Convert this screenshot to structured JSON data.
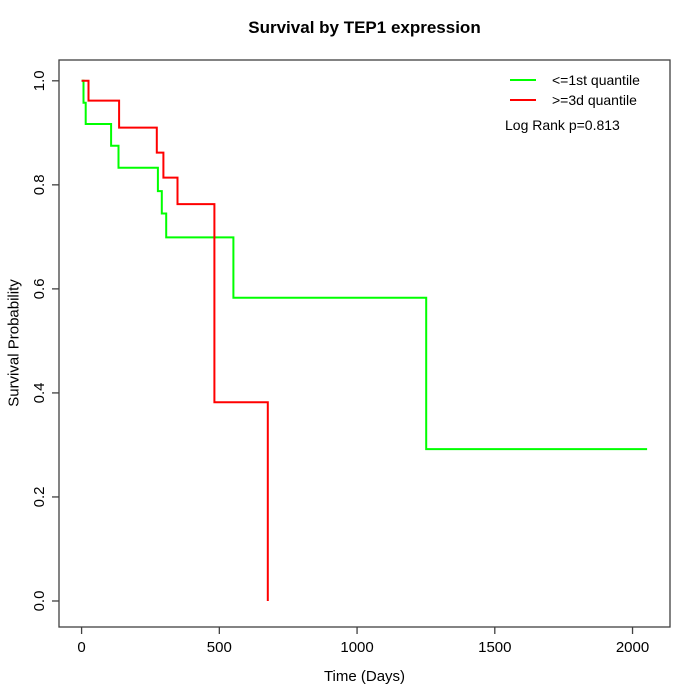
{
  "title": "Survival by TEP1 expression",
  "chart_data": {
    "type": "line",
    "subtype": "kaplan-meier-step-survival",
    "title": "Survival by TEP1 expression",
    "xlabel": "Time (Days)",
    "ylabel": "Survival Probability",
    "x_tick_values": [
      0,
      500,
      1000,
      1500,
      2000
    ],
    "x_tick_labels": [
      "0",
      "500",
      "1000",
      "1500",
      "2000"
    ],
    "y_tick_values": [
      0.0,
      0.2,
      0.4,
      0.6,
      0.8,
      1.0
    ],
    "y_tick_labels": [
      "0.0",
      "0.2",
      "0.4",
      "0.6",
      "0.8",
      "1.0"
    ],
    "xlim": [
      -82,
      2136
    ],
    "ylim": [
      -0.05,
      1.04
    ],
    "grid": false,
    "box": true,
    "legend_position": "top-right",
    "annotation": "Log Rank p=0.813",
    "series": [
      {
        "name": "<=1st quantile",
        "color": "#00ff00",
        "points": [
          [
            0,
            1.0
          ],
          [
            7,
            0.958
          ],
          [
            15,
            0.917
          ],
          [
            107,
            0.875
          ],
          [
            134,
            0.833
          ],
          [
            277,
            0.788
          ],
          [
            291,
            0.745
          ],
          [
            307,
            0.699
          ],
          [
            551,
            0.583
          ],
          [
            1251,
            0.292
          ],
          [
            2053,
            0.292
          ]
        ]
      },
      {
        "name": ">=3d quantile",
        "color": "#ff0000",
        "points": [
          [
            0,
            1.0
          ],
          [
            25,
            0.962
          ],
          [
            136,
            0.91
          ],
          [
            273,
            0.862
          ],
          [
            297,
            0.814
          ],
          [
            348,
            0.763
          ],
          [
            482,
            0.382
          ],
          [
            676,
            0.0
          ]
        ]
      }
    ]
  },
  "colors": {
    "axis_box": "#404040",
    "text": "#000000",
    "background": "#ffffff"
  }
}
